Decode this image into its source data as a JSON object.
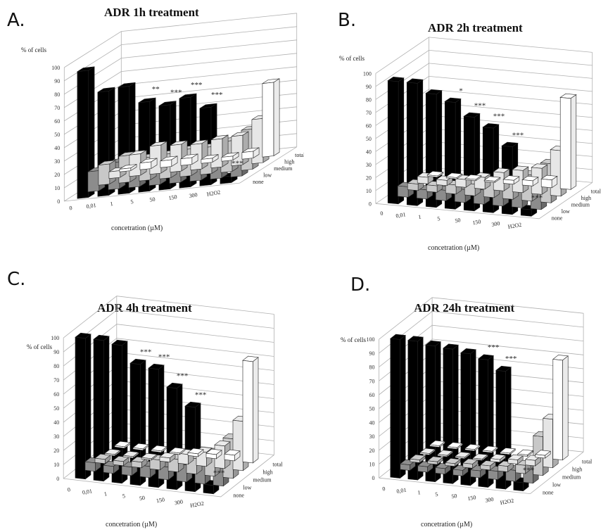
{
  "chart_data": [
    {
      "type": "bar",
      "panel": "A.",
      "title": "ADR 1h treatment",
      "ylabel": "% of cells",
      "xlabel": "concetration  (µM)",
      "ylim": [
        0,
        100
      ],
      "yticks": [
        "0",
        "10",
        "20",
        "30",
        "40",
        "50",
        "60",
        "70",
        "80",
        "90",
        "100"
      ],
      "categories": [
        "0",
        "0,01",
        "1",
        "5",
        "50",
        "150",
        "300",
        "H2O2"
      ],
      "series_labels": [
        "none",
        "low",
        "medium",
        "high",
        "total"
      ],
      "colors": {
        "none": "#000000",
        "low": "#8c8c8c",
        "medium": "#c8c8c8",
        "high": "#e6e6e6",
        "total": "#ffffff"
      },
      "series": [
        {
          "name": "none",
          "values": [
            95,
            78,
            80,
            67,
            63,
            67,
            58,
            5
          ]
        },
        {
          "name": "low",
          "values": [
            15,
            20,
            17,
            18,
            20,
            20,
            23,
            15
          ]
        },
        {
          "name": "medium",
          "values": [
            15,
            20,
            17,
            18,
            20,
            20,
            23,
            30
          ]
        },
        {
          "name": "high",
          "values": [
            5,
            16,
            21,
            20,
            19,
            21,
            22,
            33
          ]
        },
        {
          "name": "total",
          "values": [
            2,
            5,
            5,
            5,
            3,
            3,
            5,
            55
          ]
        }
      ],
      "annotations": [
        "",
        "",
        "",
        "**",
        "***",
        "***",
        "***",
        "***"
      ]
    },
    {
      "type": "bar",
      "panel": "B.",
      "title": "ADR 2h treatment",
      "ylabel": "% of cells",
      "xlabel": "concetration  (µM)",
      "ylim": [
        0,
        100
      ],
      "yticks": [
        "0",
        "10",
        "20",
        "30",
        "40",
        "50",
        "60",
        "70",
        "80",
        "90",
        "100"
      ],
      "categories": [
        "0",
        "0,01",
        "1",
        "5",
        "50",
        "150",
        "300",
        "H2O2"
      ],
      "series_labels": [
        "none",
        "low",
        "medium",
        "high",
        "total"
      ],
      "colors": {
        "none": "#000000",
        "low": "#8c8c8c",
        "medium": "#c8c8c8",
        "high": "#e6e6e6",
        "total": "#ffffff"
      },
      "series": [
        {
          "name": "none",
          "values": [
            94,
            94,
            87,
            82,
            72,
            65,
            52,
            5
          ]
        },
        {
          "name": "low",
          "values": [
            8,
            7,
            8,
            10,
            11,
            12,
            12,
            15
          ]
        },
        {
          "name": "medium",
          "values": [
            5,
            5,
            7,
            9,
            13,
            15,
            20,
            30
          ]
        },
        {
          "name": "high",
          "values": [
            5,
            4,
            6,
            9,
            14,
            17,
            20,
            35
          ]
        },
        {
          "name": "total",
          "values": [
            1,
            1,
            1,
            1,
            3,
            4,
            6,
            70
          ]
        }
      ],
      "annotations": [
        "",
        "",
        "",
        "*",
        "***",
        "***",
        "***",
        "***"
      ]
    },
    {
      "type": "bar",
      "panel": "C.",
      "title": "ADR 4h treatment",
      "ylabel": "% of cells",
      "xlabel": "concetration  (µM)",
      "ylim": [
        0,
        100
      ],
      "yticks": [
        "0",
        "10",
        "20",
        "30",
        "40",
        "50",
        "60",
        "70",
        "80",
        "90",
        "100"
      ],
      "categories": [
        "0",
        "0,01",
        "1",
        "5",
        "50",
        "150",
        "300",
        "H2O2"
      ],
      "series_labels": [
        "none",
        "low",
        "medium",
        "high",
        "total"
      ],
      "colors": {
        "none": "#000000",
        "low": "#8c8c8c",
        "medium": "#c8c8c8",
        "high": "#e6e6e6",
        "total": "#ffffff"
      },
      "series": [
        {
          "name": "none",
          "values": [
            100,
            100,
            98,
            86,
            84,
            72,
            60,
            6
          ]
        },
        {
          "name": "low",
          "values": [
            6,
            5,
            6,
            8,
            9,
            12,
            13,
            15
          ]
        },
        {
          "name": "medium",
          "values": [
            3,
            3,
            4,
            7,
            9,
            11,
            16,
            28
          ]
        },
        {
          "name": "high",
          "values": [
            1,
            1,
            1,
            3,
            7,
            10,
            16,
            35
          ]
        },
        {
          "name": "total",
          "values": [
            1,
            1,
            1,
            1,
            2,
            3,
            4,
            72
          ]
        }
      ],
      "annotations": [
        "",
        "",
        "",
        "***",
        "***",
        "***",
        "***",
        "***"
      ]
    },
    {
      "type": "bar",
      "panel": "D.",
      "title": "ADR 24h treatment",
      "ylabel": "% of cells",
      "xlabel": "concetration  (µM)",
      "ylim": [
        0,
        100
      ],
      "yticks": [
        "0",
        "10",
        "20",
        "30",
        "40",
        "50",
        "60",
        "70",
        "80",
        "90",
        "100"
      ],
      "categories": [
        "0",
        "0,01",
        "1",
        "5",
        "50",
        "150",
        "300",
        "H2O2"
      ],
      "series_labels": [
        "none",
        "low",
        "medium",
        "high",
        "total"
      ],
      "colors": {
        "none": "#000000",
        "low": "#8c8c8c",
        "medium": "#c8c8c8",
        "high": "#e6e6e6",
        "total": "#ffffff"
      },
      "series": [
        {
          "name": "none",
          "values": [
            100,
            100,
            98,
            97,
            95,
            92,
            85,
            6
          ]
        },
        {
          "name": "low",
          "values": [
            4,
            4,
            4,
            4,
            5,
            6,
            8,
            14
          ]
        },
        {
          "name": "medium",
          "values": [
            2,
            2,
            2,
            3,
            3,
            4,
            6,
            28
          ]
        },
        {
          "name": "high",
          "values": [
            1,
            1,
            1,
            1,
            2,
            3,
            4,
            35
          ]
        },
        {
          "name": "total",
          "values": [
            1,
            1,
            1,
            1,
            1,
            1,
            2,
            72
          ]
        }
      ],
      "annotations": [
        "",
        "",
        "",
        "",
        "",
        "***",
        "***",
        "***"
      ]
    }
  ]
}
